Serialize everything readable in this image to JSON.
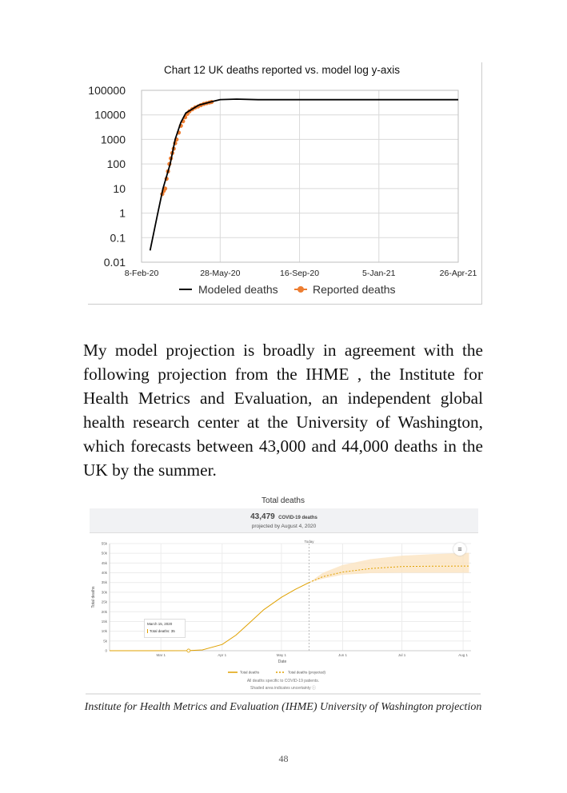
{
  "chart_data": [
    {
      "type": "line",
      "title": "Chart 12 UK deaths reported vs. model log y-axis",
      "xlabel": "",
      "ylabel": "",
      "x_axis": "date",
      "y_scale": "log",
      "xlim": [
        "2020-02-08",
        "2021-04-26"
      ],
      "ylim": [
        0.01,
        100000
      ],
      "x_tick_labels": [
        "8-Feb-20",
        "28-May-20",
        "16-Sep-20",
        "5-Jan-21",
        "26-Apr-21"
      ],
      "x_ticks": [
        "2020-02-08",
        "2020-05-28",
        "2020-09-16",
        "2021-01-05",
        "2021-04-26"
      ],
      "y_tick_labels": [
        "0.01",
        "0.1",
        "1",
        "10",
        "100",
        "1000",
        "10000",
        "100000"
      ],
      "y_ticks": [
        0.01,
        0.1,
        1,
        10,
        100,
        1000,
        10000,
        100000
      ],
      "grid": true,
      "legend": "bottom",
      "series": [
        {
          "name": "Modeled deaths",
          "color": "#000000",
          "style": "line",
          "x": [
            "2020-02-20",
            "2020-03-01",
            "2020-03-09",
            "2020-03-19",
            "2020-03-26",
            "2020-04-03",
            "2020-04-10",
            "2020-04-28",
            "2020-05-17",
            "2020-05-28",
            "2020-06-20",
            "2020-07-20",
            "2021-04-26"
          ],
          "y": [
            0.03,
            0.8,
            10,
            100,
            1000,
            5000,
            12000,
            25000,
            35000,
            42000,
            44000,
            41500,
            41500
          ]
        },
        {
          "name": "Reported deaths",
          "color": "#ed7d31",
          "style": "markers",
          "x": [
            "2020-03-08",
            "2020-03-10",
            "2020-03-12",
            "2020-03-14",
            "2020-03-16",
            "2020-03-18",
            "2020-03-20",
            "2020-03-22",
            "2020-03-24",
            "2020-03-26",
            "2020-03-28",
            "2020-03-31",
            "2020-04-03",
            "2020-04-06",
            "2020-04-09",
            "2020-04-12",
            "2020-04-15",
            "2020-04-19",
            "2020-04-23",
            "2020-04-27",
            "2020-05-01",
            "2020-05-05",
            "2020-05-09",
            "2020-05-13",
            "2020-05-16"
          ],
          "y": [
            6,
            8,
            10,
            25,
            50,
            100,
            170,
            280,
            420,
            700,
            1000,
            1900,
            3600,
            5500,
            8000,
            11000,
            14000,
            17000,
            20000,
            22000,
            25000,
            28000,
            30000,
            32000,
            33500
          ]
        }
      ]
    },
    {
      "type": "line",
      "title": "Total deaths",
      "xlabel": "Date",
      "ylabel": "Total deaths",
      "x_axis": "date",
      "xlim": [
        "2020-02-04",
        "2020-08-05"
      ],
      "ylim": [
        0,
        55000
      ],
      "x_tick_labels": [
        "Mar 1",
        "Apr 1",
        "May 1",
        "Jun 1",
        "Jul 1",
        "Aug 1"
      ],
      "x_ticks": [
        "2020-03-01",
        "2020-04-01",
        "2020-05-01",
        "2020-06-01",
        "2020-07-01",
        "2020-08-01"
      ],
      "y_tick_labels": [
        "0",
        "5k",
        "10k",
        "15k",
        "20k",
        "25k",
        "30k",
        "35k",
        "40k",
        "45k",
        "50k",
        "55k"
      ],
      "y_ticks": [
        0,
        5000,
        10000,
        15000,
        20000,
        25000,
        30000,
        35000,
        40000,
        45000,
        50000,
        55000
      ],
      "grid": true,
      "legend": "bottom",
      "today": {
        "label": "Today",
        "date": "2020-05-15"
      },
      "series": [
        {
          "name": "Total deaths",
          "color": "#e0a100",
          "style": "solid",
          "x": [
            "2020-02-04",
            "2020-03-01",
            "2020-03-15",
            "2020-03-22",
            "2020-04-01",
            "2020-04-08",
            "2020-04-15",
            "2020-04-22",
            "2020-05-01",
            "2020-05-08",
            "2020-05-15"
          ],
          "y": [
            0,
            0,
            35,
            400,
            3200,
            8000,
            14500,
            21000,
            27400,
            31500,
            35000
          ]
        },
        {
          "name": "Total deaths (projected)",
          "color": "#e0a100",
          "style": "dashed",
          "x": [
            "2020-05-15",
            "2020-05-22",
            "2020-06-01",
            "2020-06-15",
            "2020-07-01",
            "2020-07-15",
            "2020-08-04"
          ],
          "y": [
            35000,
            38000,
            40400,
            42200,
            43200,
            43400,
            43479
          ]
        }
      ],
      "uncertainty_band": {
        "color": "#fbe3c0",
        "x": [
          "2020-05-15",
          "2020-05-22",
          "2020-06-01",
          "2020-06-15",
          "2020-07-01",
          "2020-07-15",
          "2020-08-04"
        ],
        "upper": [
          35000,
          40000,
          44000,
          47000,
          48800,
          49500,
          50300
        ],
        "lower": [
          35000,
          37000,
          39000,
          39800,
          40000,
          40000,
          40000
        ]
      },
      "tooltip": {
        "date": "2020-03-15",
        "value": 35
      }
    }
  ],
  "paragraph": "My model projection is broadly in agreement with the following projection from the IHME , the Institute for Health Metrics and Evaluation, an independent global health research center at the University of Washington, which forecasts between 43,000 and 44,000 deaths in the UK by the summer.",
  "ihme": {
    "title": "Total deaths",
    "summary_number": "43,479",
    "summary_unit": "COVID-19 deaths",
    "summary_sub": "projected by August 4, 2020",
    "tooltip_date": "March 15, 2020",
    "tooltip_value": "Total deaths: 35",
    "menu_icon": "hamburger-menu-icon",
    "note1": "All deaths specific to COVID-19 patients.",
    "note2": "Shaded area indicates uncertainty ⓘ"
  },
  "caption": "Institute for Health Metrics and Evaluation (IHME) University of Washington projection",
  "page_number": "48"
}
